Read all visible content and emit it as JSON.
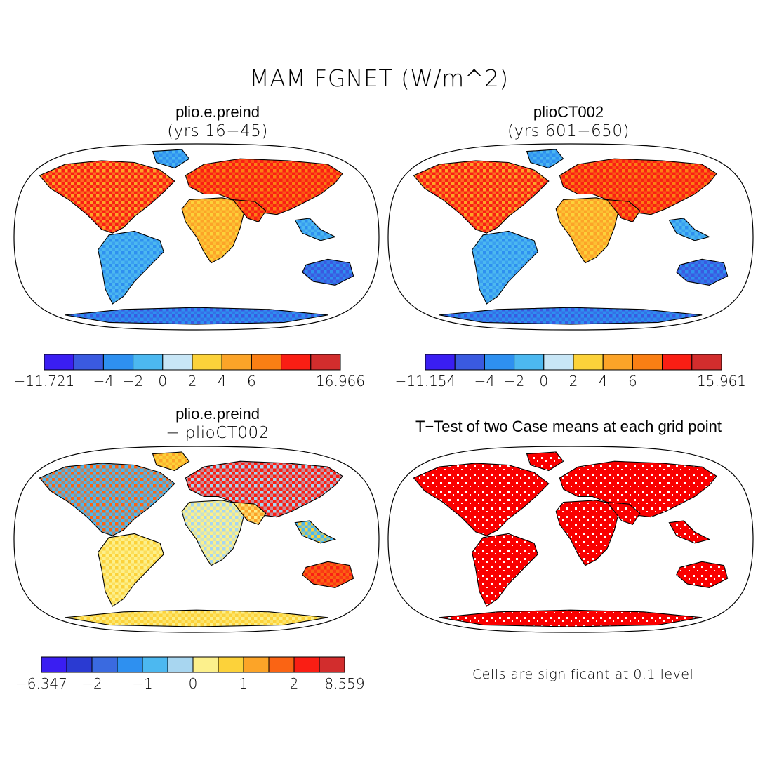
{
  "figure": {
    "title": "MAM FGNET (W/m^2)"
  },
  "panels": [
    {
      "id": "p1",
      "title": "plio.e.preind",
      "subtitle": "(yrs 16-45)",
      "colorbar": {
        "colors": [
          "#3a1ef2",
          "#3a5ae0",
          "#2e90f0",
          "#4cb8f0",
          "#c8e6f6",
          "#fcd23a",
          "#fca428",
          "#fa7f14",
          "#fa1e14",
          "#d22d2d"
        ],
        "labels": [
          "-11.721",
          "-4",
          "-2",
          "0",
          "2",
          "4",
          "6",
          "16.966"
        ]
      }
    },
    {
      "id": "p2",
      "title": "plioCT002",
      "subtitle": "(yrs 601-650)",
      "colorbar": {
        "colors": [
          "#3a1ef2",
          "#3a5ae0",
          "#2e90f0",
          "#4cb8f0",
          "#c8e6f6",
          "#fcd23a",
          "#fca428",
          "#fa7f14",
          "#fa1e14",
          "#d22d2d"
        ],
        "labels": [
          "-11.154",
          "-4",
          "-2",
          "0",
          "2",
          "4",
          "6",
          "15.961"
        ]
      }
    },
    {
      "id": "p3",
      "title": "plio.e.preind",
      "subtitle": "- plioCT002",
      "colorbar": {
        "colors": [
          "#3a1ef2",
          "#2a3ad2",
          "#3a6ae0",
          "#2e90f0",
          "#4cb8f0",
          "#a8d6f0",
          "#fcf08c",
          "#fcd23a",
          "#fca428",
          "#fa6414",
          "#fa1e14",
          "#d22d2d"
        ],
        "labels": [
          "-6.347",
          "-2",
          "-1",
          "0",
          "1",
          "2",
          "8.559"
        ]
      }
    },
    {
      "id": "p4",
      "title": "T-Test of two Case means at each grid point",
      "note": "Cells are significant at 0.1 level",
      "color": "#fa0000"
    }
  ]
}
